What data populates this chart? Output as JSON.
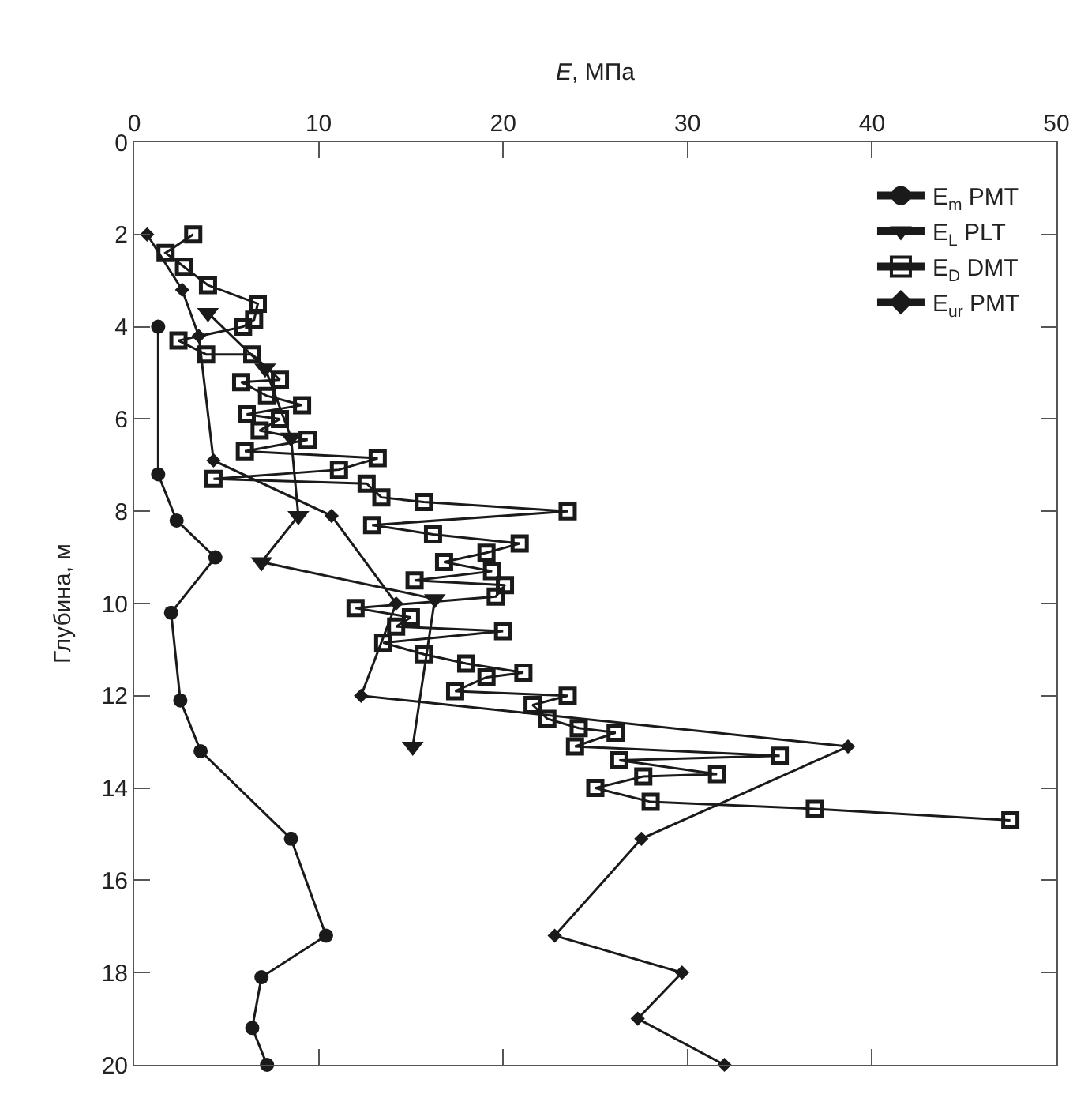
{
  "chart_data": {
    "type": "line",
    "xlabel": "E, МПа",
    "ylabel": "Глубина, м",
    "xlim": [
      0,
      50
    ],
    "xticks": [
      0,
      10,
      20,
      30,
      40,
      50
    ],
    "ylim": [
      20,
      0
    ],
    "yticks": [
      0,
      2,
      4,
      6,
      8,
      10,
      12,
      14,
      16,
      18,
      20
    ],
    "legend": "top right",
    "series": [
      {
        "name": "E$_{m}$ PMT",
        "color": "#1a1a1a",
        "marker": "circle",
        "x": [
          1.3,
          1.3,
          2.3,
          4.4,
          2.0,
          2.5,
          3.6,
          8.5,
          10.4,
          6.9,
          6.4,
          7.2
        ],
        "values": [
          4.0,
          7.2,
          8.2,
          9.0,
          10.2,
          12.1,
          13.2,
          15.1,
          17.2,
          18.1,
          19.2,
          20.0
        ]
      },
      {
        "name": "E$_{L}$ PLT",
        "color": "#1a1a1a",
        "marker": "triangle",
        "x": [
          4.0,
          7.1,
          8.5,
          8.9,
          6.9,
          16.3,
          15.1
        ],
        "values": [
          3.7,
          4.9,
          6.4,
          8.1,
          9.1,
          9.9,
          13.1
        ]
      },
      {
        "name": "E$_{D}$ DMT",
        "color": "#1a1a1a",
        "marker": "square",
        "x": [
          3.2,
          1.7,
          2.7,
          4.0,
          6.7,
          6.5,
          5.9,
          2.4,
          3.9,
          6.4,
          7.9,
          5.8,
          7.2,
          9.1,
          6.1,
          7.9,
          6.8,
          9.4,
          6.0,
          13.2,
          11.1,
          4.3,
          12.6,
          13.4,
          15.7,
          23.5,
          12.9,
          16.2,
          20.9,
          19.1,
          16.8,
          19.4,
          15.2,
          20.1,
          19.6,
          12.0,
          15.0,
          14.2,
          20.0,
          13.5,
          15.7,
          18.0,
          21.1,
          19.1,
          17.4,
          23.5,
          21.6,
          22.4,
          24.1,
          26.1,
          23.9,
          35.0,
          26.3,
          31.6,
          27.6,
          25.0,
          28.0,
          36.9,
          47.5
        ],
        "values": [
          2.0,
          2.4,
          2.7,
          3.1,
          3.5,
          3.85,
          4.0,
          4.3,
          4.6,
          4.6,
          5.15,
          5.2,
          5.5,
          5.7,
          5.9,
          6.0,
          6.25,
          6.45,
          6.7,
          6.85,
          7.1,
          7.3,
          7.4,
          7.7,
          7.8,
          8.0,
          8.3,
          8.5,
          8.7,
          8.9,
          9.1,
          9.3,
          9.5,
          9.6,
          9.85,
          10.1,
          10.3,
          10.5,
          10.6,
          10.85,
          11.1,
          11.3,
          11.5,
          11.6,
          11.9,
          12.0,
          12.2,
          12.5,
          12.7,
          12.8,
          13.1,
          13.3,
          13.4,
          13.7,
          13.75,
          14.0,
          14.3,
          14.45,
          14.7
        ]
      },
      {
        "name": "E$_{ur}$ PMT",
        "color": "#1a1a1a",
        "marker": "diamond",
        "x": [
          0.7,
          2.6,
          3.5,
          4.3,
          10.7,
          14.2,
          12.3,
          38.7,
          27.5,
          22.8,
          29.7,
          27.3,
          32.0
        ],
        "values": [
          2.0,
          3.2,
          4.2,
          6.9,
          8.1,
          10.0,
          12.0,
          13.1,
          15.1,
          17.2,
          18.0,
          19.0,
          20.0
        ]
      }
    ]
  }
}
